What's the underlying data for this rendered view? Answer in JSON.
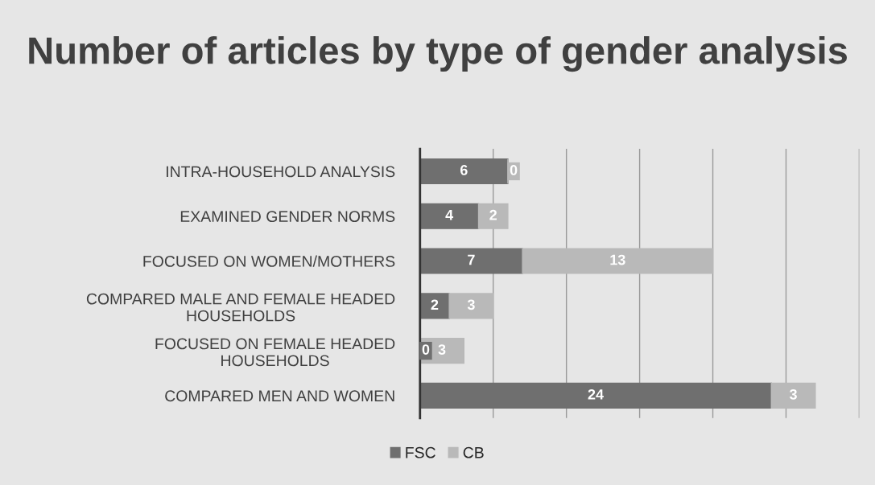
{
  "chart_data": {
    "type": "bar",
    "orientation": "horizontal",
    "stacked": true,
    "title": "Number of articles by type of gender analysis",
    "categories": [
      "INTRA-HOUSEHOLD ANALYSIS",
      "EXAMINED GENDER NORMS",
      "FOCUSED ON WOMEN/MOTHERS",
      "COMPARED MALE AND FEMALE HEADED HOUSEHOLDS",
      "FOCUSED ON FEMALE HEADED HOUSEHOLDS",
      "COMPARED MEN AND WOMEN"
    ],
    "series": [
      {
        "name": "FSC",
        "color": "#6f6f6f",
        "values": [
          6,
          4,
          7,
          2,
          0,
          24
        ]
      },
      {
        "name": "CB",
        "color": "#b9b9b9",
        "values": [
          0,
          2,
          13,
          3,
          3,
          3
        ]
      }
    ],
    "xlim": [
      0,
      30
    ],
    "xticks": [
      {
        "value": 0,
        "label": null
      },
      {
        "value": 5,
        "label": null
      },
      {
        "value": 10,
        "label": null
      },
      {
        "value": 15,
        "label": null
      },
      {
        "value": 20,
        "label": null
      },
      {
        "value": 25,
        "label": null
      },
      {
        "value": 30,
        "label": null
      }
    ],
    "grid": "x",
    "legend": "bottom",
    "data_labels": true
  }
}
